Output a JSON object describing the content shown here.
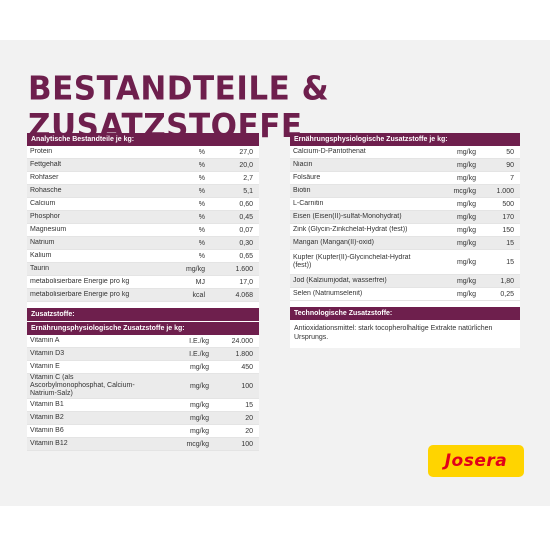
{
  "title": "BESTANDTEILE & ZUSATZSTOFFE",
  "analytische": {
    "header": "Analytische Bestandteile je kg:",
    "rows": [
      {
        "name": "Protein",
        "unit": "%",
        "value": "27,0"
      },
      {
        "name": "Fettgehalt",
        "unit": "%",
        "value": "20,0"
      },
      {
        "name": "Rohfaser",
        "unit": "%",
        "value": "2,7"
      },
      {
        "name": "Rohasche",
        "unit": "%",
        "value": "5,1"
      },
      {
        "name": "Calcium",
        "unit": "%",
        "value": "0,60"
      },
      {
        "name": "Phosphor",
        "unit": "%",
        "value": "0,45"
      },
      {
        "name": "Magnesium",
        "unit": "%",
        "value": "0,07"
      },
      {
        "name": "Natrium",
        "unit": "%",
        "value": "0,30"
      },
      {
        "name": "Kalium",
        "unit": "%",
        "value": "0,65"
      },
      {
        "name": "Taurin",
        "unit": "mg/kg",
        "value": "1.600"
      },
      {
        "name": "metabolisierbare Energie pro kg",
        "unit": "MJ",
        "value": "17,0"
      },
      {
        "name": "metabolisierbare Energie pro kg",
        "unit": "kcal",
        "value": "4.068"
      }
    ]
  },
  "zusatzstoffe": {
    "header": "Zusatzstoffe:",
    "sub_header": "Ernährungsphysiologische Zusatzstoffe je kg:",
    "rows": [
      {
        "name": "Vitamin A",
        "unit": "I.E./kg",
        "value": "24.000"
      },
      {
        "name": "Vitamin D3",
        "unit": "I.E./kg",
        "value": "1.800"
      },
      {
        "name": "Vitamin E",
        "unit": "mg/kg",
        "value": "450"
      },
      {
        "name": "Vitamin C (als Ascorbylmonophosphat, Calcium-Natrium-Salz)",
        "unit": "mg/kg",
        "value": "100"
      },
      {
        "name": "Vitamin B1",
        "unit": "mg/kg",
        "value": "15"
      },
      {
        "name": "Vitamin B2",
        "unit": "mg/kg",
        "value": "20"
      },
      {
        "name": "Vitamin B6",
        "unit": "mg/kg",
        "value": "20"
      },
      {
        "name": "Vitamin B12",
        "unit": "mcg/kg",
        "value": "100"
      }
    ]
  },
  "ernaehrung": {
    "header": "Ernährungsphysiologische Zusatzstoffe je kg:",
    "rows": [
      {
        "name": "Calcium-D-Pantothenat",
        "unit": "mg/kg",
        "value": "50"
      },
      {
        "name": "Niacin",
        "unit": "mg/kg",
        "value": "90"
      },
      {
        "name": "Folsäure",
        "unit": "mg/kg",
        "value": "7"
      },
      {
        "name": "Biotin",
        "unit": "mcg/kg",
        "value": "1.000"
      },
      {
        "name": "L-Carnitin",
        "unit": "mg/kg",
        "value": "500"
      },
      {
        "name": "Eisen (Eisen(II)-sulfat-Monohydrat)",
        "unit": "mg/kg",
        "value": "170"
      },
      {
        "name": "Zink (Glycin-Zinkchelat-Hydrat (fest))",
        "unit": "mg/kg",
        "value": "150"
      },
      {
        "name": "Mangan (Mangan(II)-oxid)",
        "unit": "mg/kg",
        "value": "15"
      },
      {
        "name": "Kupfer (Kupfer(II)-Glycinchelat-Hydrat (fest))",
        "unit": "mg/kg",
        "value": "15"
      },
      {
        "name": "Jod (Kalziumjodat, wasserfrei)",
        "unit": "mg/kg",
        "value": "1,80"
      },
      {
        "name": "Selen (Natriumselenit)",
        "unit": "mg/kg",
        "value": "0,25"
      }
    ]
  },
  "technologisch": {
    "header": "Technologische Zusatzstoffe:",
    "text": "Antioxidationsmittel: stark tocopherolhaltige Extrakte natürlichen Ursprungs."
  },
  "logo": {
    "text": "Josera",
    "background": "#ffd400",
    "color": "#e2001a"
  },
  "colors": {
    "accent": "#6e1f4d",
    "stripe": "#ebebeb",
    "page": "#f2f2f2"
  }
}
